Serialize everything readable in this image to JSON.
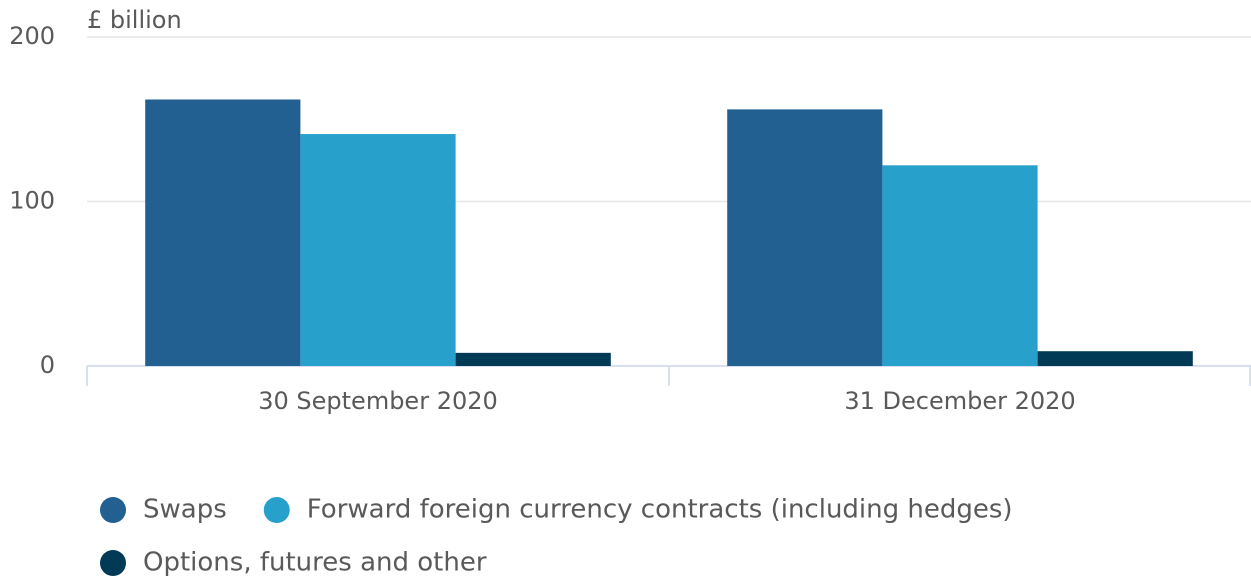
{
  "chart_data": {
    "type": "bar",
    "y_label": "£ billion",
    "categories": [
      "30 September 2020",
      "31 December 2020"
    ],
    "series": [
      {
        "name": "Swaps",
        "color": "#236092",
        "values": [
          162,
          156
        ]
      },
      {
        "name": "Forward foreign currency contracts (including hedges)",
        "color": "#27a1cc",
        "values": [
          141,
          122
        ]
      },
      {
        "name": "Options, futures and other",
        "color": "#003a55",
        "values": [
          8,
          9
        ]
      }
    ],
    "ylim": [
      0,
      200
    ],
    "yticks": [
      0,
      100,
      200
    ],
    "grid": true
  }
}
